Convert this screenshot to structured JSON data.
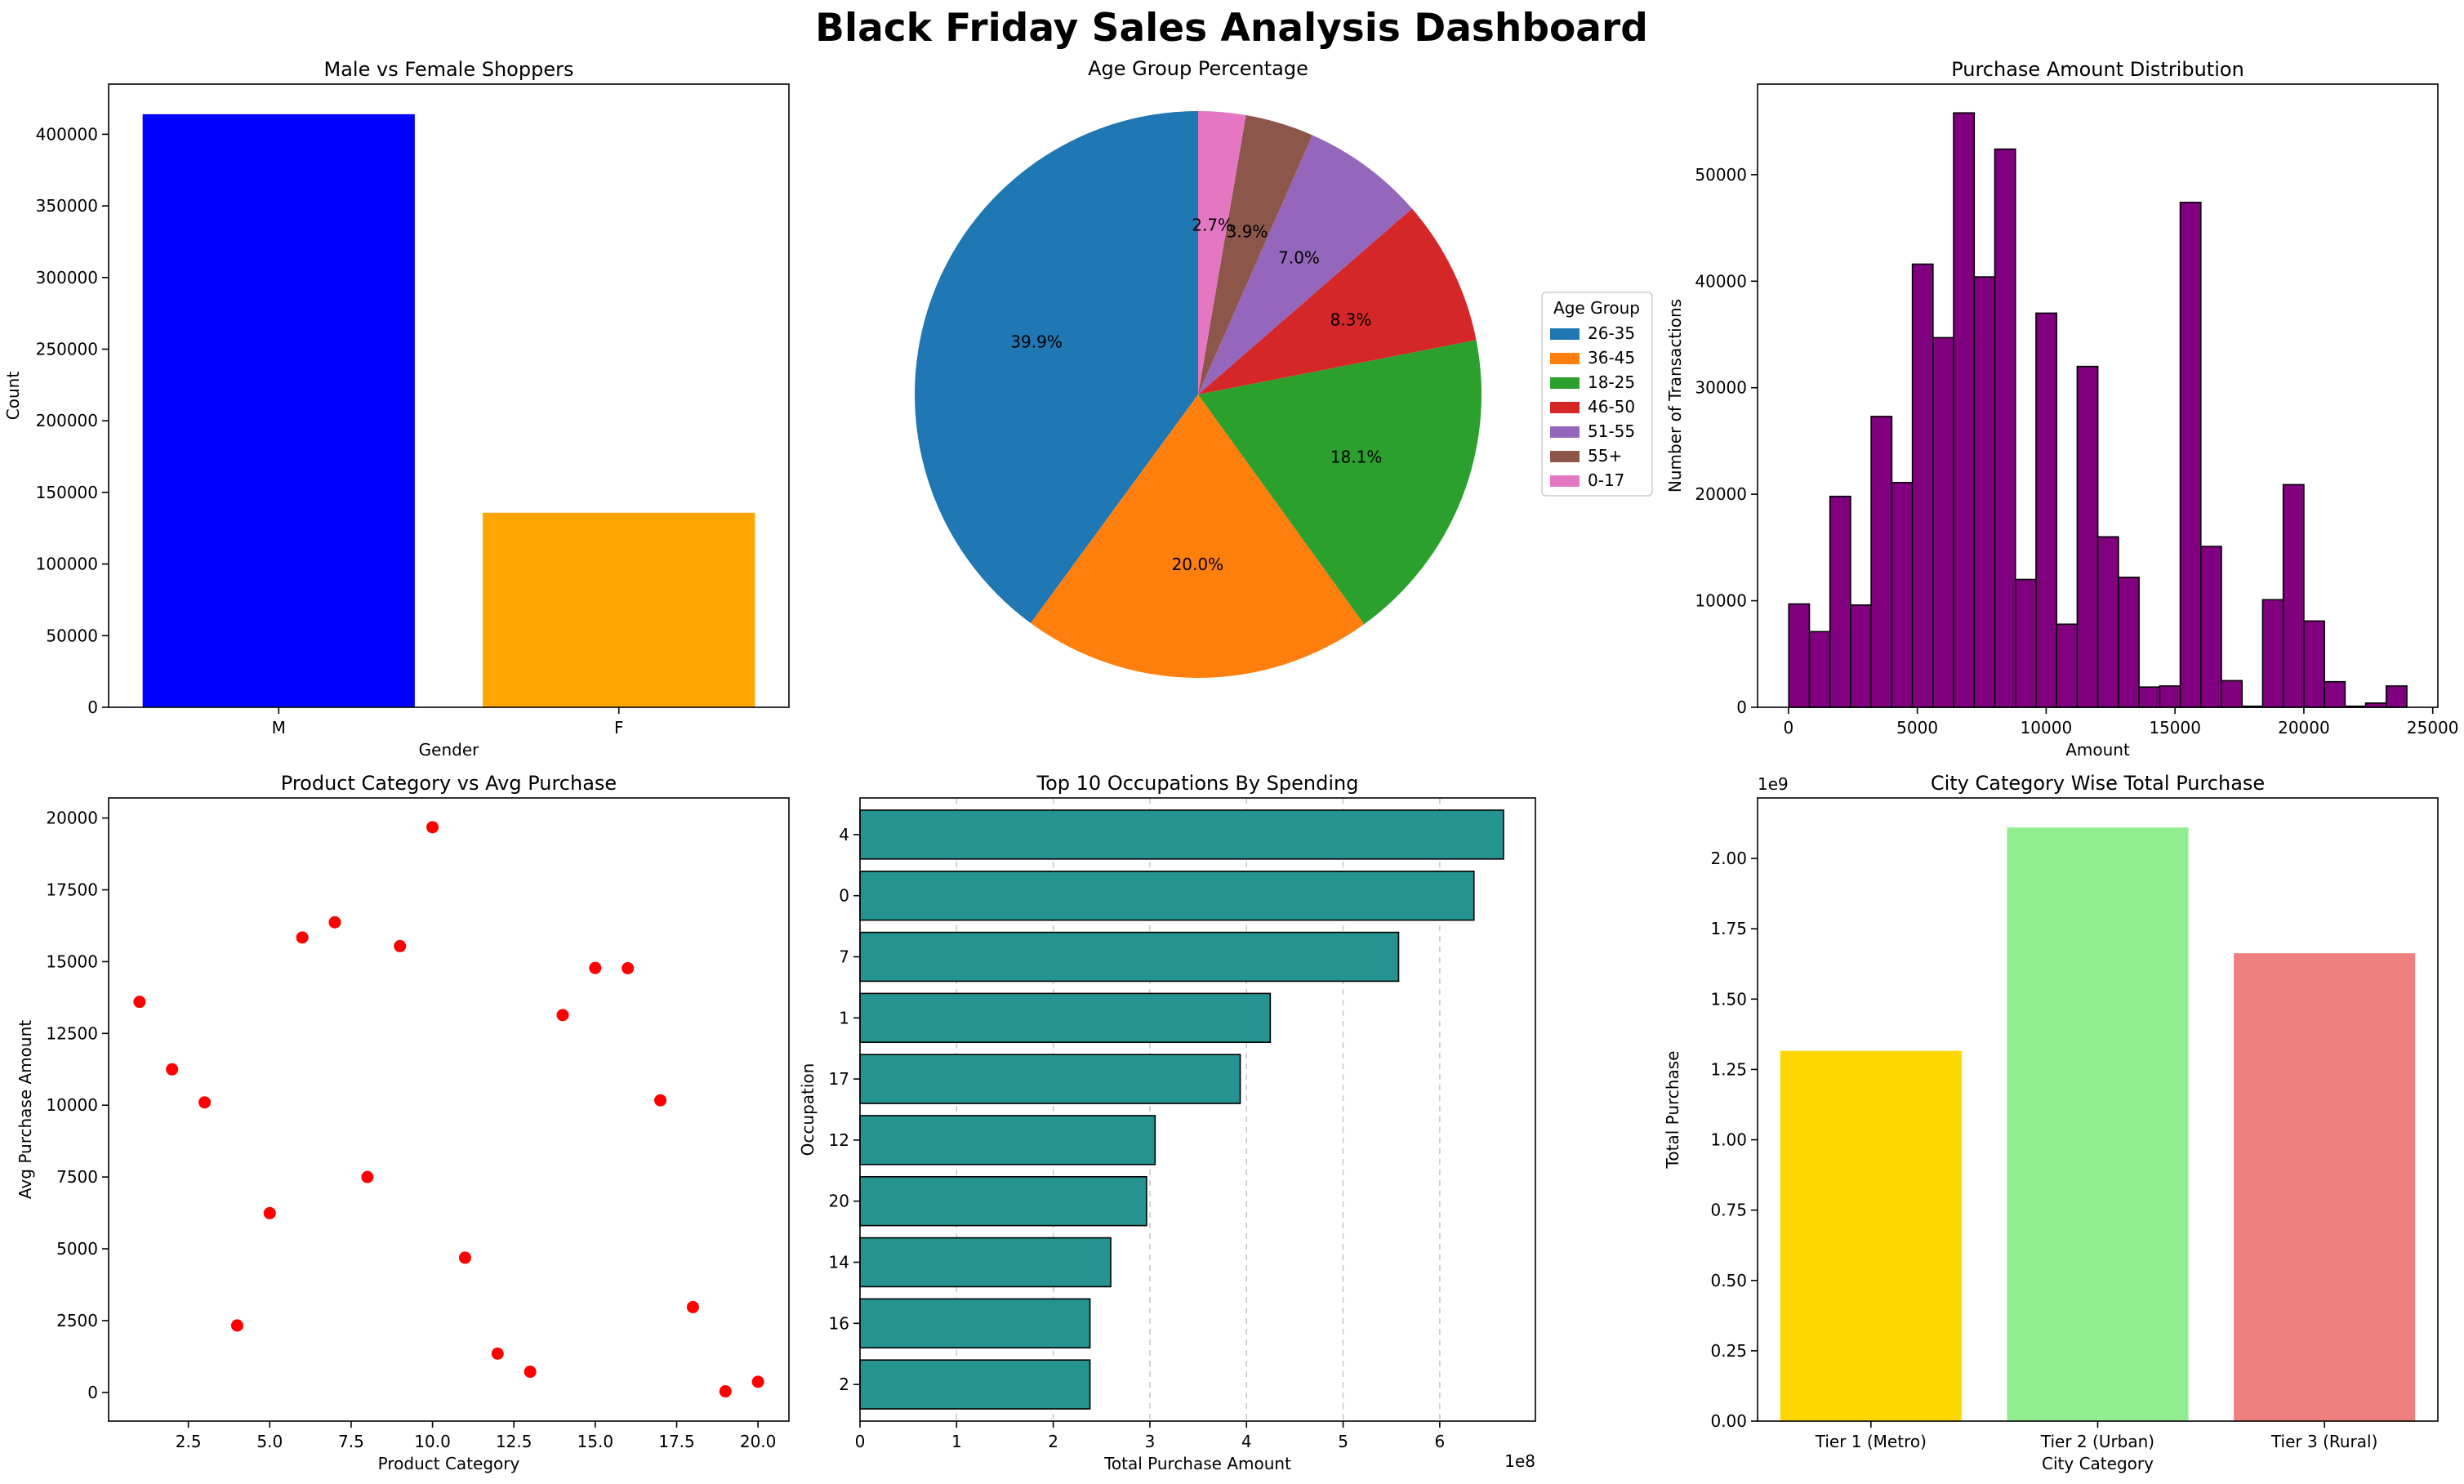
{
  "dashboard": {
    "title": "Black Friday Sales Analysis Dashboard"
  },
  "chart_data": [
    {
      "id": "gender",
      "type": "bar",
      "title": "Male vs Female Shoppers",
      "xlabel": "Gender",
      "ylabel": "Count",
      "categories": [
        "M",
        "F"
      ],
      "values": [
        414000,
        135800
      ],
      "colors": [
        "#0000ff",
        "#ffa500"
      ],
      "ylim": [
        0,
        435000
      ],
      "yticks": [
        0,
        50000,
        100000,
        150000,
        200000,
        250000,
        300000,
        350000,
        400000
      ],
      "ytick_labels": [
        "0",
        "50000",
        "100000",
        "150000",
        "200000",
        "250000",
        "300000",
        "350000",
        "400000"
      ],
      "grid": false
    },
    {
      "id": "age",
      "type": "pie",
      "title": "Age Group Percentage",
      "legend_title": "Age Group",
      "legend_position": "right",
      "labels": [
        "26-35",
        "36-45",
        "18-25",
        "46-50",
        "51-55",
        "55+",
        "0-17"
      ],
      "values": [
        39.9,
        20.0,
        18.1,
        8.3,
        7.0,
        3.9,
        2.7
      ],
      "value_labels": [
        "39.9%",
        "20.0%",
        "18.1%",
        "8.3%",
        "7.0%",
        "3.9%",
        "2.7%"
      ],
      "colors": [
        "#1f77b4",
        "#ff7f0e",
        "#2ca02c",
        "#d62728",
        "#9467bd",
        "#8c564b",
        "#e377c2"
      ],
      "start_angle": 90
    },
    {
      "id": "purchase",
      "type": "bar",
      "subtype": "histogram",
      "title": "Purchase Amount Distribution",
      "xlabel": "Amount",
      "ylabel": "Number of Transactions",
      "bin_start": 12,
      "bin_width": 799.5,
      "values": [
        9700,
        7100,
        19800,
        9600,
        27300,
        21100,
        41600,
        34700,
        55800,
        40400,
        52400,
        12000,
        37000,
        7800,
        32000,
        16000,
        12200,
        1900,
        2000,
        47400,
        15100,
        2500,
        100,
        10100,
        20900,
        8100,
        2400,
        100,
        400,
        2000
      ],
      "color": "#800080",
      "xlim": [
        -1200,
        25200
      ],
      "ylim": [
        0,
        58500
      ],
      "xticks": [
        0,
        5000,
        10000,
        15000,
        20000,
        25000
      ],
      "xtick_labels": [
        "0",
        "5000",
        "10000",
        "15000",
        "20000",
        "25000"
      ],
      "yticks": [
        0,
        10000,
        20000,
        30000,
        40000,
        50000
      ],
      "ytick_labels": [
        "0",
        "10000",
        "20000",
        "30000",
        "40000",
        "50000"
      ],
      "grid": false
    },
    {
      "id": "category",
      "type": "scatter",
      "title": "Product Category vs Avg Purchase",
      "xlabel": "Product Category",
      "ylabel": "Avg Purchase Amount",
      "x": [
        1,
        2,
        3,
        4,
        5,
        6,
        7,
        8,
        9,
        10,
        11,
        12,
        13,
        14,
        15,
        16,
        17,
        18,
        19,
        20
      ],
      "y": [
        13600,
        11250,
        10100,
        2330,
        6240,
        15840,
        16370,
        7500,
        15540,
        19680,
        4690,
        1350,
        720,
        13140,
        14780,
        14770,
        10170,
        2970,
        37,
        370
      ],
      "color": "#ff0000",
      "xlim": [
        0.05,
        20.95
      ],
      "ylim": [
        -1000,
        20700
      ],
      "xticks": [
        2.5,
        5.0,
        7.5,
        10.0,
        12.5,
        15.0,
        17.5,
        20.0
      ],
      "xtick_labels": [
        "2.5",
        "5.0",
        "7.5",
        "10.0",
        "12.5",
        "15.0",
        "17.5",
        "20.0"
      ],
      "yticks": [
        0,
        2500,
        5000,
        7500,
        10000,
        12500,
        15000,
        17500,
        20000
      ],
      "ytick_labels": [
        "0",
        "2500",
        "5000",
        "7500",
        "10000",
        "12500",
        "15000",
        "17500",
        "20000"
      ],
      "grid": false
    },
    {
      "id": "occupation",
      "type": "bar",
      "orientation": "horizontal",
      "title": "Top 10 Occupations By Spending",
      "xlabel": "Total Purchase Amount",
      "ylabel": "Occupation",
      "x_offset_label": "1e8",
      "categories": [
        "4",
        "0",
        "7",
        "1",
        "17",
        "12",
        "20",
        "14",
        "16",
        "2"
      ],
      "values": [
        666000000,
        635400000,
        557400000,
        424600000,
        393500000,
        305400000,
        296600000,
        259500000,
        238000000,
        238000000
      ],
      "color": "#259491",
      "xlim": [
        0,
        699000000
      ],
      "xticks": [
        0,
        100000000,
        200000000,
        300000000,
        400000000,
        500000000,
        600000000
      ],
      "xtick_labels": [
        "0",
        "1",
        "2",
        "3",
        "4",
        "5",
        "6"
      ],
      "grid": "x (dashed)"
    },
    {
      "id": "city",
      "type": "bar",
      "title": "City Category Wise Total Purchase",
      "xlabel": "City Category",
      "ylabel": "Total Purchase",
      "y_offset_label": "1e9",
      "categories": [
        "Tier 1 (Metro)",
        "Tier 2 (Urban)",
        "Tier 3 (Rural)"
      ],
      "values": [
        1316000000,
        2110000000,
        1663000000
      ],
      "colors": [
        "#ffd700",
        "#90ee90",
        "#f08080"
      ],
      "ylim": [
        0,
        2215000000
      ],
      "yticks": [
        0,
        250000000,
        500000000,
        750000000,
        1000000000,
        1250000000,
        1500000000,
        1750000000,
        2000000000
      ],
      "ytick_labels": [
        "0.00",
        "0.25",
        "0.50",
        "0.75",
        "1.00",
        "1.25",
        "1.50",
        "1.75",
        "2.00"
      ],
      "grid": false
    }
  ]
}
